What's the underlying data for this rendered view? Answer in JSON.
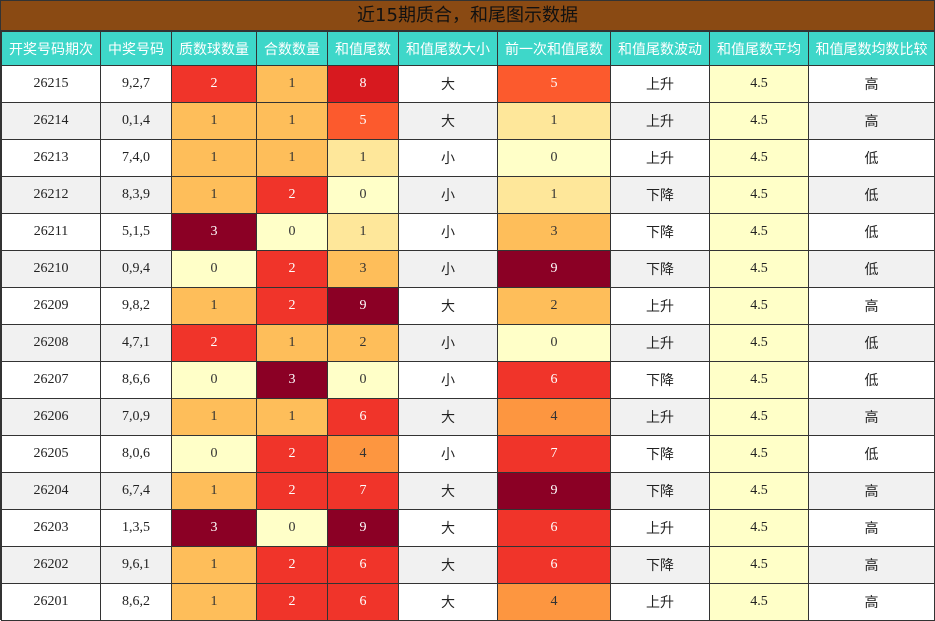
{
  "title": "近15期质合，和尾图示数据",
  "columns": [
    "开奖号码期次",
    "中奖号码",
    "质数球数量",
    "合数数量",
    "和值尾数",
    "和值尾数大小",
    "前一次和值尾数",
    "和值尾数波动",
    "和值尾数平均",
    "和值尾数均数比较"
  ],
  "colors": {
    "header_bg": "#3ed7c9",
    "title_bg": "#8a4a13",
    "avg_bg": "#ffffc8",
    "heat_scale": [
      "#ffffc8",
      "#fee79a",
      "#febe5a",
      "#fd9640",
      "#fc5a2d",
      "#f0342a",
      "#d7191f",
      "#8b0025"
    ]
  },
  "chart_data": {
    "type": "table",
    "title": "近15期质合，和尾图示数据",
    "columns": [
      "开奖号码期次",
      "中奖号码",
      "质数球数量",
      "合数数量",
      "和值尾数",
      "和值尾数大小",
      "前一次和值尾数",
      "和值尾数波动",
      "和值尾数平均",
      "和值尾数均数比较"
    ],
    "rows": [
      {
        "period": "26215",
        "numbers": "9,2,7",
        "prime": 2,
        "composite": 1,
        "tail": 8,
        "size": "大",
        "prev_tail": 5,
        "trend": "上升",
        "avg": "4.5",
        "compare": "高"
      },
      {
        "period": "26214",
        "numbers": "0,1,4",
        "prime": 1,
        "composite": 1,
        "tail": 5,
        "size": "大",
        "prev_tail": 1,
        "trend": "上升",
        "avg": "4.5",
        "compare": "高"
      },
      {
        "period": "26213",
        "numbers": "7,4,0",
        "prime": 1,
        "composite": 1,
        "tail": 1,
        "size": "小",
        "prev_tail": 0,
        "trend": "上升",
        "avg": "4.5",
        "compare": "低"
      },
      {
        "period": "26212",
        "numbers": "8,3,9",
        "prime": 1,
        "composite": 2,
        "tail": 0,
        "size": "小",
        "prev_tail": 1,
        "trend": "下降",
        "avg": "4.5",
        "compare": "低"
      },
      {
        "period": "26211",
        "numbers": "5,1,5",
        "prime": 3,
        "composite": 0,
        "tail": 1,
        "size": "小",
        "prev_tail": 3,
        "trend": "下降",
        "avg": "4.5",
        "compare": "低"
      },
      {
        "period": "26210",
        "numbers": "0,9,4",
        "prime": 0,
        "composite": 2,
        "tail": 3,
        "size": "小",
        "prev_tail": 9,
        "trend": "下降",
        "avg": "4.5",
        "compare": "低"
      },
      {
        "period": "26209",
        "numbers": "9,8,2",
        "prime": 1,
        "composite": 2,
        "tail": 9,
        "size": "大",
        "prev_tail": 2,
        "trend": "上升",
        "avg": "4.5",
        "compare": "高"
      },
      {
        "period": "26208",
        "numbers": "4,7,1",
        "prime": 2,
        "composite": 1,
        "tail": 2,
        "size": "小",
        "prev_tail": 0,
        "trend": "上升",
        "avg": "4.5",
        "compare": "低"
      },
      {
        "period": "26207",
        "numbers": "8,6,6",
        "prime": 0,
        "composite": 3,
        "tail": 0,
        "size": "小",
        "prev_tail": 6,
        "trend": "下降",
        "avg": "4.5",
        "compare": "低"
      },
      {
        "period": "26206",
        "numbers": "7,0,9",
        "prime": 1,
        "composite": 1,
        "tail": 6,
        "size": "大",
        "prev_tail": 4,
        "trend": "上升",
        "avg": "4.5",
        "compare": "高"
      },
      {
        "period": "26205",
        "numbers": "8,0,6",
        "prime": 0,
        "composite": 2,
        "tail": 4,
        "size": "小",
        "prev_tail": 7,
        "trend": "下降",
        "avg": "4.5",
        "compare": "低"
      },
      {
        "period": "26204",
        "numbers": "6,7,4",
        "prime": 1,
        "composite": 2,
        "tail": 7,
        "size": "大",
        "prev_tail": 9,
        "trend": "下降",
        "avg": "4.5",
        "compare": "高"
      },
      {
        "period": "26203",
        "numbers": "1,3,5",
        "prime": 3,
        "composite": 0,
        "tail": 9,
        "size": "大",
        "prev_tail": 6,
        "trend": "上升",
        "avg": "4.5",
        "compare": "高"
      },
      {
        "period": "26202",
        "numbers": "9,6,1",
        "prime": 1,
        "composite": 2,
        "tail": 6,
        "size": "大",
        "prev_tail": 6,
        "trend": "下降",
        "avg": "4.5",
        "compare": "高"
      },
      {
        "period": "26201",
        "numbers": "8,6,2",
        "prime": 1,
        "composite": 2,
        "tail": 6,
        "size": "大",
        "prev_tail": 4,
        "trend": "上升",
        "avg": "4.5",
        "compare": "高"
      }
    ]
  }
}
